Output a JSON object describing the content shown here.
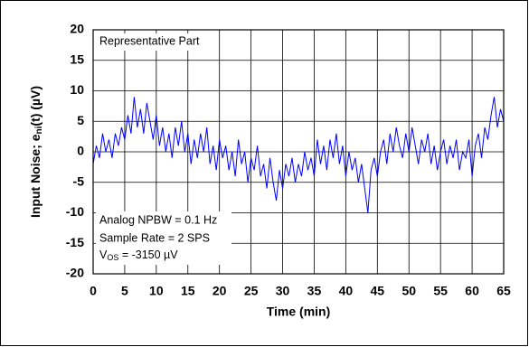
{
  "chart_data": {
    "type": "line",
    "xlabel": "Time (min)",
    "ylabel": [
      "Input Noise; e",
      "ni",
      "(t) (µV)"
    ],
    "annotations": {
      "part": "Representative Part",
      "npbw": "Analog NPBW = 0.1 Hz",
      "rate": "Sample Rate = 2 SPS",
      "vos": [
        "V",
        "OS",
        " = -3150 µV"
      ]
    },
    "x": [
      0,
      0.5,
      1,
      1.5,
      2,
      2.5,
      3,
      3.5,
      4,
      4.5,
      5,
      5.5,
      6,
      6.5,
      7,
      7.5,
      8,
      8.5,
      9,
      9.5,
      10,
      10.5,
      11,
      11.5,
      12,
      12.5,
      13,
      13.5,
      14,
      14.5,
      15,
      15.5,
      16,
      16.5,
      17,
      17.5,
      18,
      18.5,
      19,
      19.5,
      20,
      20.5,
      21,
      21.5,
      22,
      22.5,
      23,
      23.5,
      24,
      24.5,
      25,
      25.5,
      26,
      26.5,
      27,
      27.5,
      28,
      28.5,
      29,
      29.5,
      30,
      30.5,
      31,
      31.5,
      32,
      32.5,
      33,
      33.5,
      34,
      34.5,
      35,
      35.5,
      36,
      36.5,
      37,
      37.5,
      38,
      38.5,
      39,
      39.5,
      40,
      40.5,
      41,
      41.5,
      42,
      42.5,
      43,
      43.5,
      44,
      44.5,
      45,
      45.5,
      46,
      46.5,
      47,
      47.5,
      48,
      48.5,
      49,
      49.5,
      50,
      50.5,
      51,
      51.5,
      52,
      52.5,
      53,
      53.5,
      54,
      54.5,
      55,
      55.5,
      56,
      56.5,
      57,
      57.5,
      58,
      58.5,
      59,
      59.5,
      60,
      60.5,
      61,
      61.5,
      62,
      62.5,
      63,
      63.5,
      64,
      64.5,
      65
    ],
    "series": [
      {
        "color": "#0000ff",
        "values": [
          -2,
          1,
          -1,
          3,
          0,
          2,
          -1,
          3,
          1,
          4,
          2,
          6,
          3,
          9,
          4,
          7,
          3,
          8,
          5,
          2,
          6,
          1,
          4,
          0,
          3,
          -1,
          4,
          1,
          5,
          0,
          3,
          -2,
          2,
          -1,
          3,
          0,
          4,
          -2,
          1,
          -3,
          2,
          -1,
          1,
          -3,
          0,
          -4,
          2,
          -2,
          0,
          -5,
          -1,
          -3,
          1,
          -4,
          -2,
          -6,
          -1,
          -5,
          -8,
          -3,
          -6,
          -2,
          -4,
          -1,
          -5,
          -2,
          -4,
          0,
          -3,
          -1,
          -4,
          2,
          -2,
          1,
          -3,
          2,
          -1,
          3,
          -2,
          1,
          -4,
          0,
          -3,
          -1,
          -5,
          -2,
          -6,
          -10,
          -3,
          -1,
          -4,
          0,
          2,
          -2,
          3,
          0,
          4,
          1,
          -1,
          3,
          0,
          4,
          1,
          -2,
          2,
          0,
          3,
          -2,
          1,
          -3,
          0,
          2,
          -2,
          1,
          -1,
          2,
          -3,
          0,
          -1,
          2,
          -4,
          1,
          3,
          -1,
          4,
          2,
          6,
          9,
          4,
          7,
          5
        ]
      }
    ],
    "xlim": [
      0,
      65
    ],
    "ylim": [
      -20,
      20
    ],
    "xticks": [
      0,
      5,
      10,
      15,
      20,
      25,
      30,
      35,
      40,
      45,
      50,
      55,
      60,
      65
    ],
    "yticks": [
      -20,
      -15,
      -10,
      -5,
      0,
      5,
      10,
      15,
      20
    ],
    "grid": true
  }
}
